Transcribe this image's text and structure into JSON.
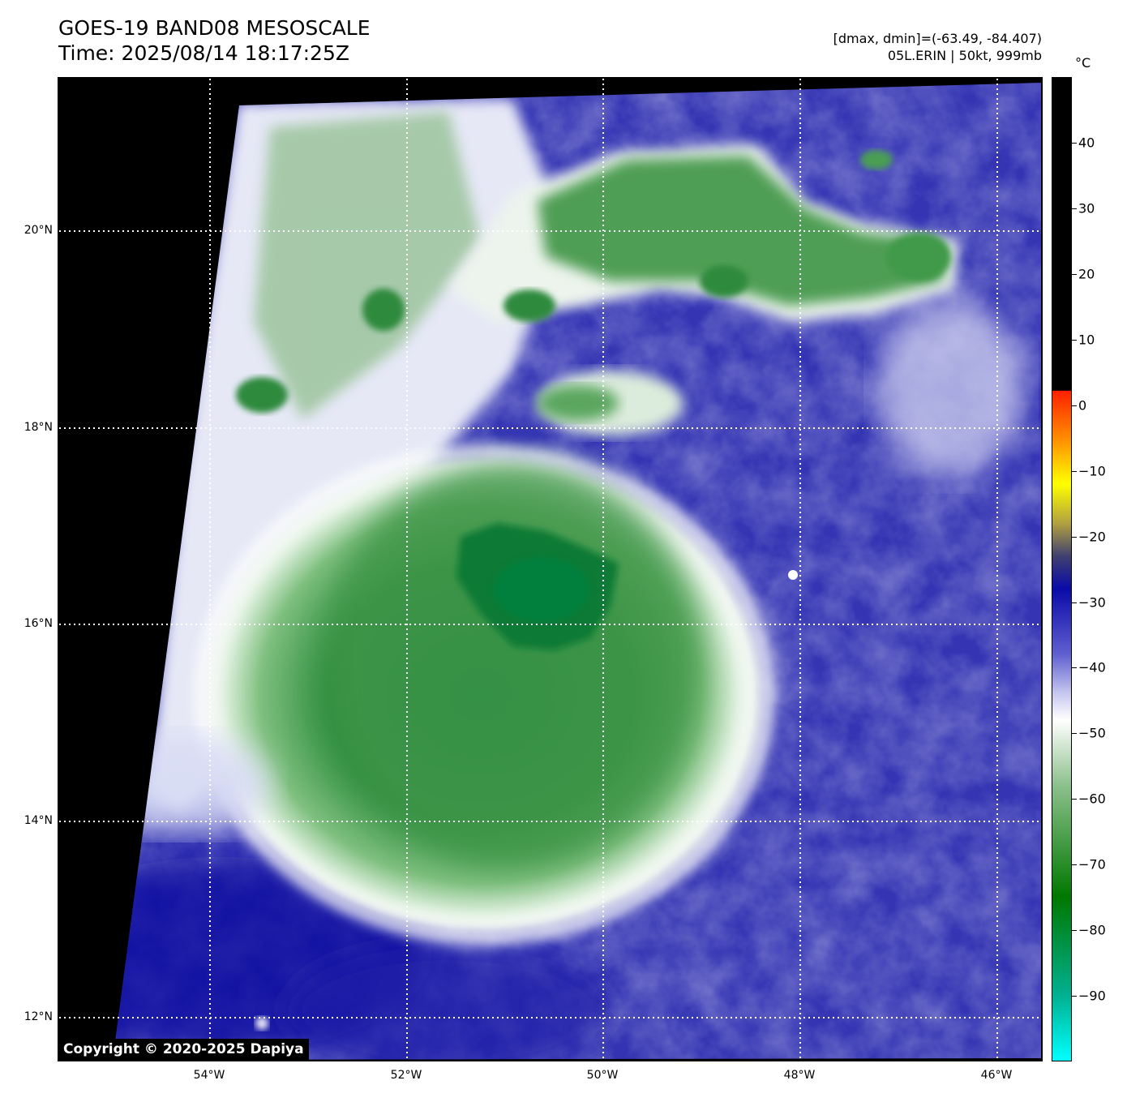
{
  "title": {
    "line1": "GOES-19 BAND08 MESOSCALE",
    "line2": "Time: 2025/08/14 18:17:25Z"
  },
  "info": {
    "range": "[dmax, dmin]=(-63.49, -84.407)",
    "storm": "05L.ERIN | 50kt, 999mb"
  },
  "map": {
    "lat_labels": [
      "20°N",
      "18°N",
      "16°N",
      "14°N",
      "12°N"
    ],
    "lon_labels": [
      "54°W",
      "52°W",
      "50°W",
      "48°W",
      "46°W"
    ],
    "gridlines": "dotted-white",
    "features": {
      "storm_core": "green cold cloud tops centered near 16.5°N 50.5°W",
      "northern_cloud_band": "green convection 19°N–20.5°N, 52°W–46.5°W",
      "clear_area": "blue warm background east and south"
    },
    "colors": {
      "no_data": "#000000",
      "clear_sky": "#2f2fb0",
      "cloud_mid": "#ffffff",
      "cloud_cold": "#2e8b3c",
      "core": "#087a35"
    }
  },
  "copyright": "Copyright © 2020-2025 Dapiya",
  "colorbar": {
    "unit": "°C",
    "tick_labels": [
      "40",
      "30",
      "20",
      "10",
      "0",
      "−10",
      "−20",
      "−30",
      "−40",
      "−50",
      "−60",
      "−70",
      "−80",
      "−90"
    ],
    "tick_values": [
      40,
      30,
      20,
      10,
      0,
      -10,
      -20,
      -30,
      -40,
      -50,
      -60,
      -70,
      -80,
      -90
    ],
    "range": [
      -100,
      50
    ],
    "stops": [
      {
        "value": 50,
        "color": "#000000"
      },
      {
        "value": 2.3,
        "color": "#000000"
      },
      {
        "value": 2.2,
        "color": "#ff2000"
      },
      {
        "value": -5,
        "color": "#ff8c00"
      },
      {
        "value": -12,
        "color": "#ffff00"
      },
      {
        "value": -18,
        "color": "#b0a040"
      },
      {
        "value": -23,
        "color": "#404070"
      },
      {
        "value": -28,
        "color": "#0a0aa8"
      },
      {
        "value": -38,
        "color": "#6060d0"
      },
      {
        "value": -44,
        "color": "#c8c8f0"
      },
      {
        "value": -48,
        "color": "#ffffff"
      },
      {
        "value": -58,
        "color": "#8cc08c"
      },
      {
        "value": -75,
        "color": "#007800"
      },
      {
        "value": -90,
        "color": "#00b090"
      },
      {
        "value": -100,
        "color": "#00ffff"
      }
    ]
  }
}
